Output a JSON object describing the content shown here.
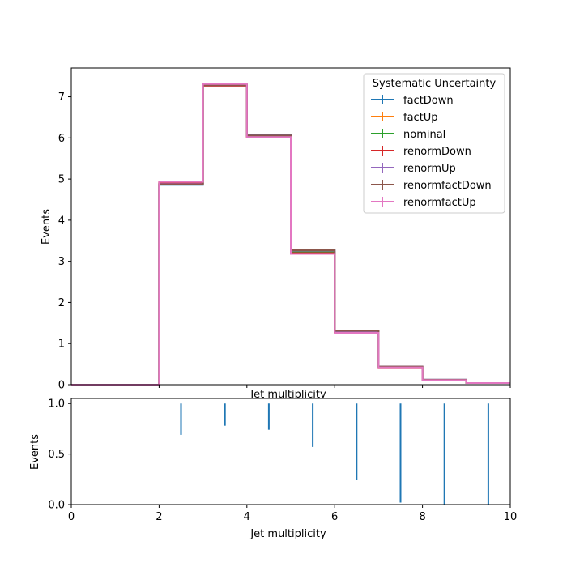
{
  "chart_data": [
    {
      "type": "step",
      "xlabel": "Jet multiplicity",
      "ylabel": "Events",
      "xlim": [
        0,
        10
      ],
      "ylim": [
        0,
        7.7
      ],
      "xticks": [
        2,
        4,
        6,
        8,
        10
      ],
      "yticks": [
        0,
        1,
        2,
        3,
        4,
        5,
        6,
        7
      ],
      "bin_edges": [
        0,
        1,
        2,
        3,
        4,
        5,
        6,
        7,
        8,
        9,
        10
      ],
      "legend": {
        "title": "Systematic Uncertainty",
        "placement": "top-right"
      },
      "series": [
        {
          "name": "factDown",
          "color": "#1f77b4",
          "values": [
            0,
            0,
            4.86,
            7.28,
            6.07,
            3.28,
            1.31,
            0.44,
            0.12,
            0.04
          ]
        },
        {
          "name": "factUp",
          "color": "#ff7f0e",
          "values": [
            0,
            0,
            4.92,
            7.3,
            6.02,
            3.19,
            1.27,
            0.42,
            0.11,
            0.04
          ]
        },
        {
          "name": "nominal",
          "color": "#2ca02c",
          "values": [
            0,
            0,
            4.89,
            7.29,
            6.04,
            3.23,
            1.29,
            0.43,
            0.11,
            0.04
          ]
        },
        {
          "name": "renormDown",
          "color": "#d62728",
          "values": [
            0,
            0,
            4.9,
            7.27,
            6.02,
            3.2,
            1.27,
            0.42,
            0.11,
            0.04
          ]
        },
        {
          "name": "renormUp",
          "color": "#9467bd",
          "values": [
            0,
            0,
            4.88,
            7.31,
            6.06,
            3.26,
            1.3,
            0.44,
            0.12,
            0.04
          ]
        },
        {
          "name": "renormfactDown",
          "color": "#8c564b",
          "values": [
            0,
            0,
            4.87,
            7.28,
            6.06,
            3.27,
            1.31,
            0.44,
            0.12,
            0.04
          ]
        },
        {
          "name": "renormfactUp",
          "color": "#e377c2",
          "values": [
            0,
            0,
            4.93,
            7.31,
            6.02,
            3.18,
            1.26,
            0.42,
            0.11,
            0.04
          ]
        }
      ]
    },
    {
      "type": "errorbar",
      "xlabel": "Jet multiplicity",
      "ylabel": "Events",
      "xlim": [
        0,
        10
      ],
      "ylim": [
        0,
        1.05
      ],
      "xticks": [
        0,
        2,
        4,
        6,
        8,
        10
      ],
      "yticks": [
        0.0,
        0.5,
        1.0
      ],
      "series": [
        {
          "color": "#1f77b4",
          "x": [
            2.5,
            3.5,
            4.5,
            5.5,
            6.5,
            7.5,
            8.5,
            9.5
          ],
          "low": [
            0.69,
            0.78,
            0.74,
            0.57,
            0.24,
            0.02,
            0.0,
            0.0
          ],
          "high": [
            1.0,
            1.0,
            1.0,
            1.0,
            1.0,
            1.0,
            1.0,
            1.0
          ]
        }
      ]
    }
  ]
}
